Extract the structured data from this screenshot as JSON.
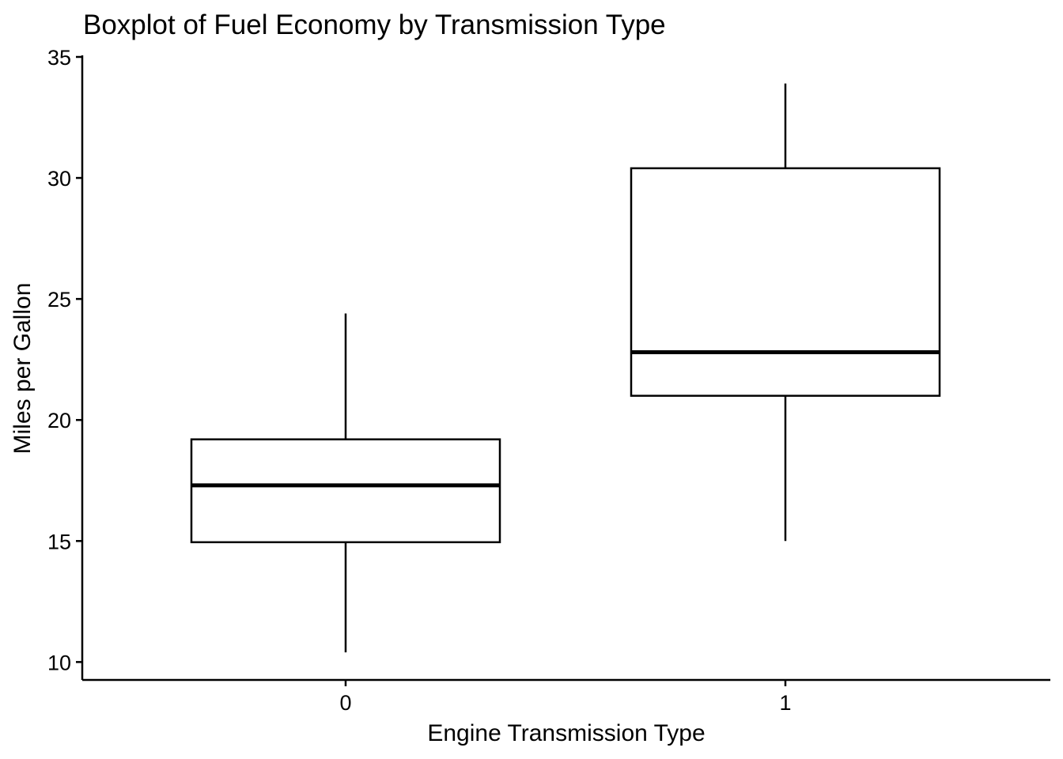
{
  "chart_data": {
    "type": "boxplot",
    "title": "Boxplot of Fuel Economy by Transmission Type",
    "xlabel": "Engine Transmission Type",
    "ylabel": "Miles per Gallon",
    "categories": [
      "0",
      "1"
    ],
    "boxes": [
      {
        "category": "0",
        "whisker_low": 10.4,
        "q1": 14.95,
        "median": 17.3,
        "q3": 19.2,
        "whisker_high": 24.4
      },
      {
        "category": "1",
        "whisker_low": 15.0,
        "q1": 21.0,
        "median": 22.8,
        "q3": 30.4,
        "whisker_high": 33.9
      }
    ],
    "ylim": [
      9.26,
      35.0
    ],
    "yticks": [
      10,
      15,
      20,
      25,
      30,
      35
    ],
    "grid": false,
    "legend": "none",
    "colors": {
      "box_fill": "#ffffff",
      "line": "#000000"
    }
  }
}
